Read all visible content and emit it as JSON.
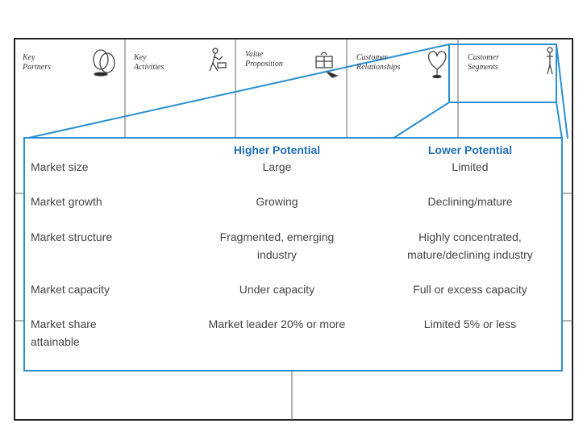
{
  "canvas": {
    "blocks": [
      {
        "name": "key-partners",
        "label_line1": "Key",
        "label_line2": "Partners",
        "icon": "rings-icon"
      },
      {
        "name": "key-activities",
        "label_line1": "Key",
        "label_line2": "Activities",
        "icon": "worker-icon"
      },
      {
        "name": "value-proposition",
        "label_line1": "Value",
        "label_line2": "Proposition",
        "icon": "gift-icon"
      },
      {
        "name": "customer-relationships",
        "label_line1": "Customer",
        "label_line2": "Relationships",
        "icon": "heart-icon"
      },
      {
        "name": "customer-segments",
        "label_line1": "Customer",
        "label_line2": "Segments",
        "icon": "person-icon"
      }
    ]
  },
  "table": {
    "col_higher": "Higher Potential",
    "col_lower": "Lower Potential",
    "rows": [
      {
        "factor": "Market size",
        "higher": "Large",
        "lower": "Limited"
      },
      {
        "factor": "Market growth",
        "higher": "Growing",
        "lower": "Declining/mature"
      },
      {
        "factor": "Market structure",
        "higher_line1": "Fragmented, emerging",
        "higher_line2": "industry",
        "lower_line1": "Highly concentrated,",
        "lower_line2": "mature/declining industry"
      },
      {
        "factor": "Market capacity",
        "higher": "Under capacity",
        "lower": "Full or excess capacity"
      },
      {
        "factor_line1": "Market share",
        "factor_line2": "attainable",
        "higher": "Market leader 20% or more",
        "lower": "Limited 5% or less"
      }
    ]
  },
  "colors": {
    "accent": "#2a8fcf",
    "header_text": "#1e6fb5",
    "body_text": "#444444",
    "frame": "#222222"
  }
}
